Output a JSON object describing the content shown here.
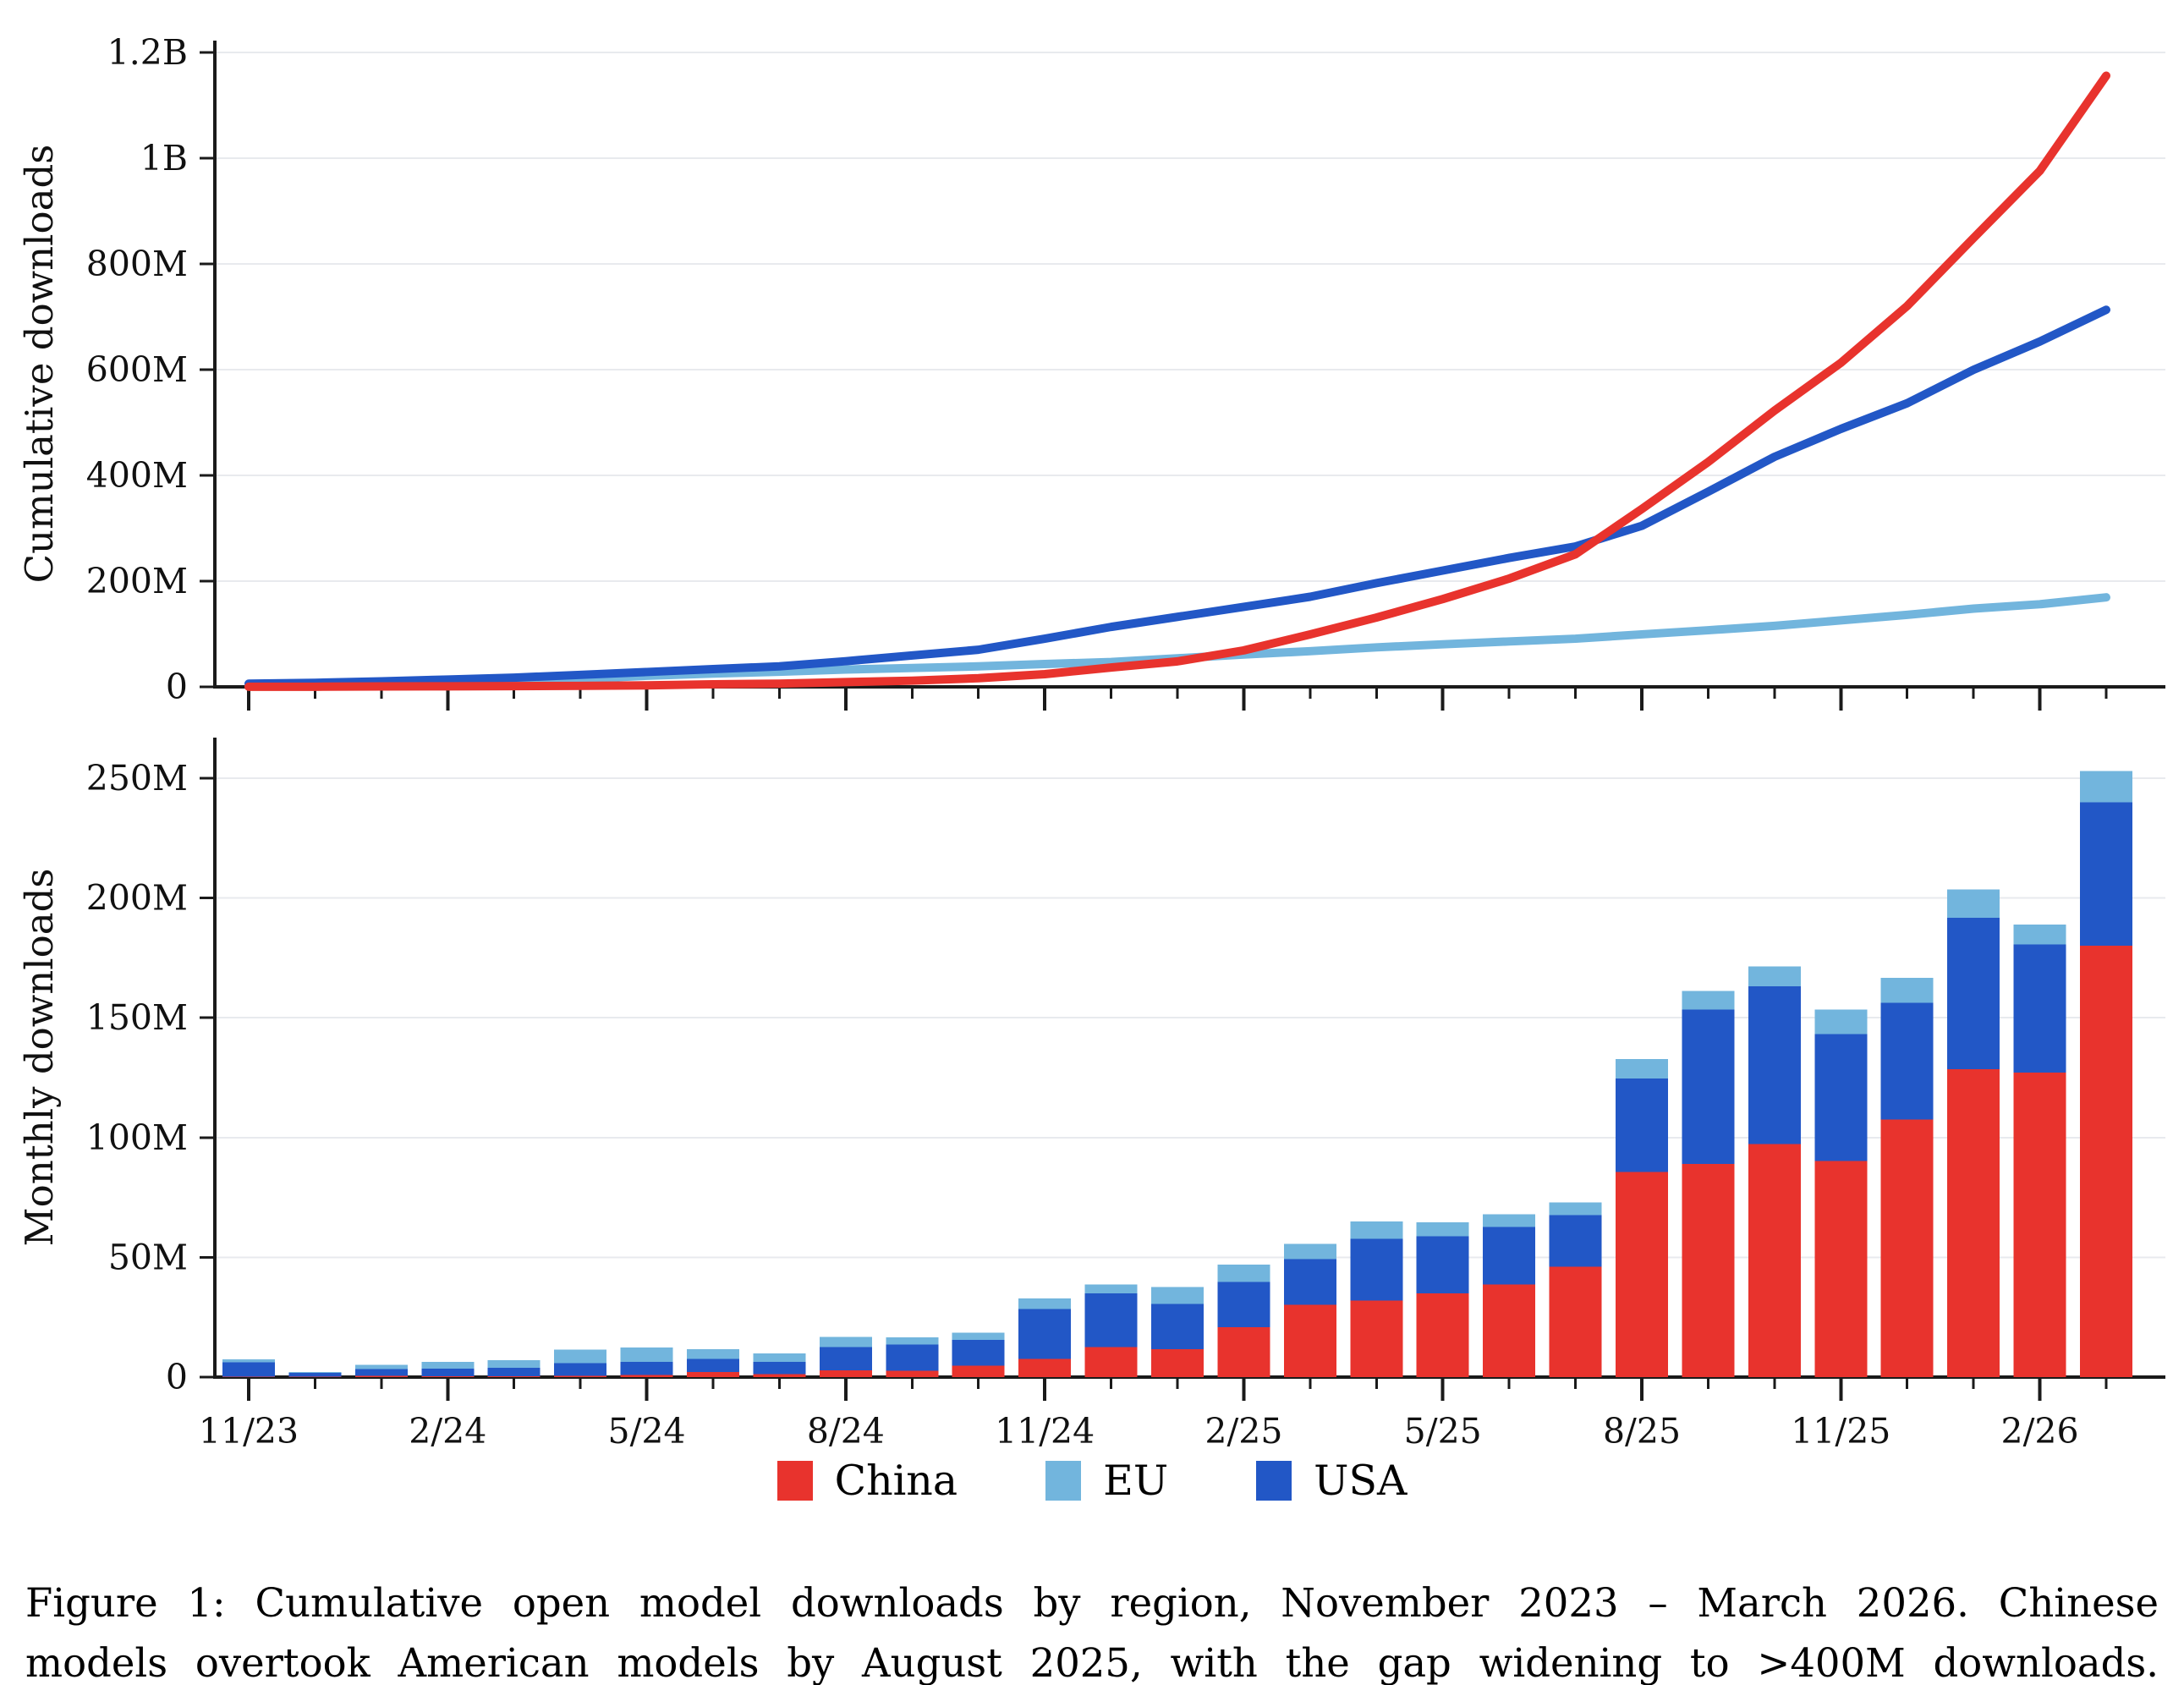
{
  "figure": {
    "caption": {
      "line1": "Figure 1: Cumulative open model downloads by region, November 2023 – March 2026. Chinese",
      "line2": "models overtook American models by August 2025, with the gap widening to >400M downloads."
    }
  },
  "legend": {
    "items": [
      {
        "label": "China",
        "color": "#e8332d"
      },
      {
        "label": "EU",
        "color": "#72b5dd"
      },
      {
        "label": "USA",
        "color": "#2257c6"
      }
    ]
  },
  "colors": {
    "china": "#e8332d",
    "eu": "#72b5dd",
    "usa": "#2257c6",
    "gridline": "#e8eaee",
    "axis": "#1a1a1a",
    "background": "#ffffff"
  },
  "chart_data": [
    {
      "type": "line",
      "title": "",
      "xlabel": "",
      "ylabel": "Cumulative downloads",
      "units": "millions of downloads",
      "x": [
        "11/23",
        "12/23",
        "1/24",
        "2/24",
        "3/24",
        "4/24",
        "5/24",
        "6/24",
        "7/24",
        "8/24",
        "9/24",
        "10/24",
        "11/24",
        "12/24",
        "1/25",
        "2/25",
        "3/25",
        "4/25",
        "5/25",
        "6/25",
        "7/25",
        "8/25",
        "9/25",
        "10/25",
        "11/25",
        "12/25",
        "1/26",
        "2/26",
        "3/26"
      ],
      "xtick_labels_shown": false,
      "ylim_millions": [
        0,
        1200
      ],
      "ytick_values": [
        0,
        200,
        400,
        600,
        800,
        1000,
        1200
      ],
      "ytick_labels": [
        "0",
        "200M",
        "400M",
        "600M",
        "800M",
        "1B",
        "1.2B"
      ],
      "grid": "horizontal",
      "legend_position": "shared-below",
      "series": [
        {
          "name": "EU",
          "color": "#72b5dd",
          "values": [
            1.3,
            1.7,
            3.5,
            6.2,
            9.3,
            15.0,
            21.0,
            25.1,
            28.6,
            32.7,
            35.7,
            38.8,
            43.2,
            47.0,
            54.0,
            61.2,
            67.5,
            74.7,
            80.5,
            85.9,
            91.1,
            99.3,
            107.1,
            115.4,
            125.8,
            136.2,
            148.0,
            156.3,
            169.3
          ]
        },
        {
          "name": "USA",
          "color": "#2257c6",
          "values": [
            6.0,
            7.6,
            10.5,
            13.8,
            17.4,
            22.7,
            28.1,
            33.6,
            38.8,
            48.5,
            59.4,
            70.2,
            91.1,
            113.4,
            132.4,
            151.3,
            170.4,
            196.2,
            220.0,
            243.9,
            265.6,
            304.6,
            369.1,
            435.1,
            487.9,
            536.5,
            599.7,
            653.2,
            713.2
          ]
        },
        {
          "name": "China",
          "color": "#e8332d",
          "values": [
            0.2,
            0.3,
            0.8,
            1.1,
            1.4,
            1.9,
            2.8,
            4.9,
            6.1,
            9.0,
            11.7,
            16.4,
            24.0,
            36.6,
            48.2,
            69.0,
            99.2,
            131.1,
            166.1,
            204.8,
            250.8,
            336.4,
            425.3,
            522.5,
            612.8,
            720.4,
            848.9,
            976.0,
            1156.0
          ]
        }
      ]
    },
    {
      "type": "bar",
      "stacked": true,
      "title": "",
      "xlabel": "",
      "ylabel": "Monthly downloads",
      "units": "millions of downloads",
      "categories": [
        "11/23",
        "12/23",
        "1/24",
        "2/24",
        "3/24",
        "4/24",
        "5/24",
        "6/24",
        "7/24",
        "8/24",
        "9/24",
        "10/24",
        "11/24",
        "12/24",
        "1/25",
        "2/25",
        "3/25",
        "4/25",
        "5/25",
        "6/25",
        "7/25",
        "8/25",
        "9/25",
        "10/25",
        "11/25",
        "12/25",
        "1/26",
        "2/26",
        "3/26"
      ],
      "xtick_positions": [
        0,
        3,
        6,
        9,
        12,
        15,
        18,
        21,
        24,
        27
      ],
      "xtick_labels": [
        "11/23",
        "2/24",
        "5/24",
        "8/24",
        "11/24",
        "2/25",
        "5/25",
        "8/25",
        "11/25",
        "2/26"
      ],
      "ylim_millions": [
        0,
        260
      ],
      "ytick_values": [
        0,
        50,
        100,
        150,
        200,
        250
      ],
      "ytick_labels": [
        "0",
        "50M",
        "100M",
        "150M",
        "200M",
        "250M"
      ],
      "grid": "horizontal",
      "stack_order": [
        "China",
        "USA",
        "EU"
      ],
      "series": [
        {
          "name": "China",
          "color": "#e8332d",
          "values": [
            0.2,
            0.1,
            0.5,
            0.3,
            0.3,
            0.5,
            0.9,
            2.1,
            1.2,
            2.9,
            2.7,
            4.7,
            7.6,
            12.6,
            11.6,
            20.8,
            30.2,
            31.9,
            35.0,
            38.7,
            46.0,
            85.6,
            88.9,
            97.2,
            90.3,
            107.6,
            128.5,
            127.1,
            180.0
          ]
        },
        {
          "name": "USA",
          "color": "#2257c6",
          "values": [
            6.0,
            1.6,
            2.9,
            3.3,
            3.6,
            5.3,
            5.4,
            5.5,
            5.2,
            9.7,
            10.9,
            10.8,
            20.9,
            22.3,
            19.0,
            18.9,
            19.1,
            25.8,
            23.8,
            23.9,
            21.7,
            39.0,
            64.5,
            66.0,
            52.8,
            48.6,
            63.2,
            53.5,
            60.0
          ]
        },
        {
          "name": "EU",
          "color": "#72b5dd",
          "values": [
            1.3,
            0.4,
            1.8,
            2.7,
            3.1,
            5.7,
            6.0,
            4.1,
            3.5,
            4.1,
            3.0,
            3.1,
            4.4,
            3.8,
            7.0,
            7.2,
            6.3,
            7.2,
            5.8,
            5.4,
            5.2,
            8.2,
            7.8,
            8.3,
            10.4,
            10.4,
            11.8,
            8.3,
            13.0
          ]
        }
      ]
    }
  ]
}
